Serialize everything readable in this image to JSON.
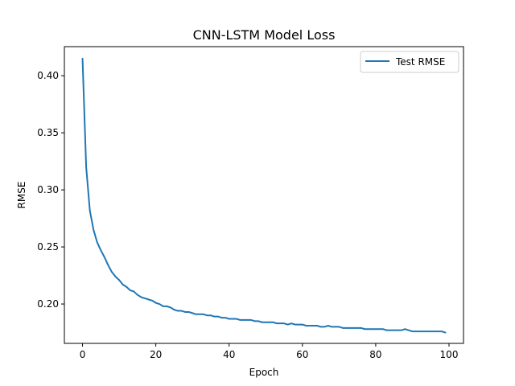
{
  "chart_data": {
    "type": "line",
    "title": "CNN-LSTM Model Loss",
    "xlabel": "Epoch",
    "ylabel": "RMSE",
    "xlim": [
      -4.95,
      103.95
    ],
    "ylim": [
      0.1655,
      0.4255
    ],
    "xticks": [
      0,
      20,
      40,
      60,
      80,
      100
    ],
    "xtick_labels": [
      "0",
      "20",
      "40",
      "60",
      "80",
      "100"
    ],
    "yticks": [
      0.2,
      0.25,
      0.3,
      0.35,
      0.4
    ],
    "ytick_labels": [
      "0.20",
      "0.25",
      "0.30",
      "0.35",
      "0.40"
    ],
    "grid": false,
    "legend_position": "upper right",
    "series": [
      {
        "name": "Test RMSE",
        "color": "#1f77b4",
        "x": [
          0,
          1,
          2,
          3,
          4,
          5,
          6,
          7,
          8,
          9,
          10,
          11,
          12,
          13,
          14,
          15,
          16,
          17,
          18,
          19,
          20,
          21,
          22,
          23,
          24,
          25,
          26,
          27,
          28,
          29,
          30,
          31,
          32,
          33,
          34,
          35,
          36,
          37,
          38,
          39,
          40,
          41,
          42,
          43,
          44,
          45,
          46,
          47,
          48,
          49,
          50,
          51,
          52,
          53,
          54,
          55,
          56,
          57,
          58,
          59,
          60,
          61,
          62,
          63,
          64,
          65,
          66,
          67,
          68,
          69,
          70,
          71,
          72,
          73,
          74,
          75,
          76,
          77,
          78,
          79,
          80,
          81,
          82,
          83,
          84,
          85,
          86,
          87,
          88,
          89,
          90,
          91,
          92,
          93,
          94,
          95,
          96,
          97,
          98,
          99
        ],
        "values": [
          0.415,
          0.32,
          0.282,
          0.265,
          0.254,
          0.247,
          0.241,
          0.234,
          0.228,
          0.224,
          0.221,
          0.217,
          0.215,
          0.212,
          0.211,
          0.208,
          0.206,
          0.205,
          0.204,
          0.203,
          0.201,
          0.2,
          0.198,
          0.198,
          0.197,
          0.195,
          0.194,
          0.194,
          0.193,
          0.193,
          0.192,
          0.191,
          0.191,
          0.191,
          0.19,
          0.19,
          0.189,
          0.189,
          0.188,
          0.188,
          0.187,
          0.187,
          0.187,
          0.186,
          0.186,
          0.186,
          0.186,
          0.185,
          0.185,
          0.184,
          0.184,
          0.184,
          0.184,
          0.183,
          0.183,
          0.183,
          0.182,
          0.183,
          0.182,
          0.182,
          0.182,
          0.181,
          0.181,
          0.181,
          0.181,
          0.18,
          0.18,
          0.181,
          0.18,
          0.18,
          0.18,
          0.179,
          0.179,
          0.179,
          0.179,
          0.179,
          0.179,
          0.178,
          0.178,
          0.178,
          0.178,
          0.178,
          0.178,
          0.177,
          0.177,
          0.177,
          0.177,
          0.177,
          0.178,
          0.177,
          0.176,
          0.176,
          0.176,
          0.176,
          0.176,
          0.176,
          0.176,
          0.176,
          0.176,
          0.175
        ]
      }
    ]
  }
}
